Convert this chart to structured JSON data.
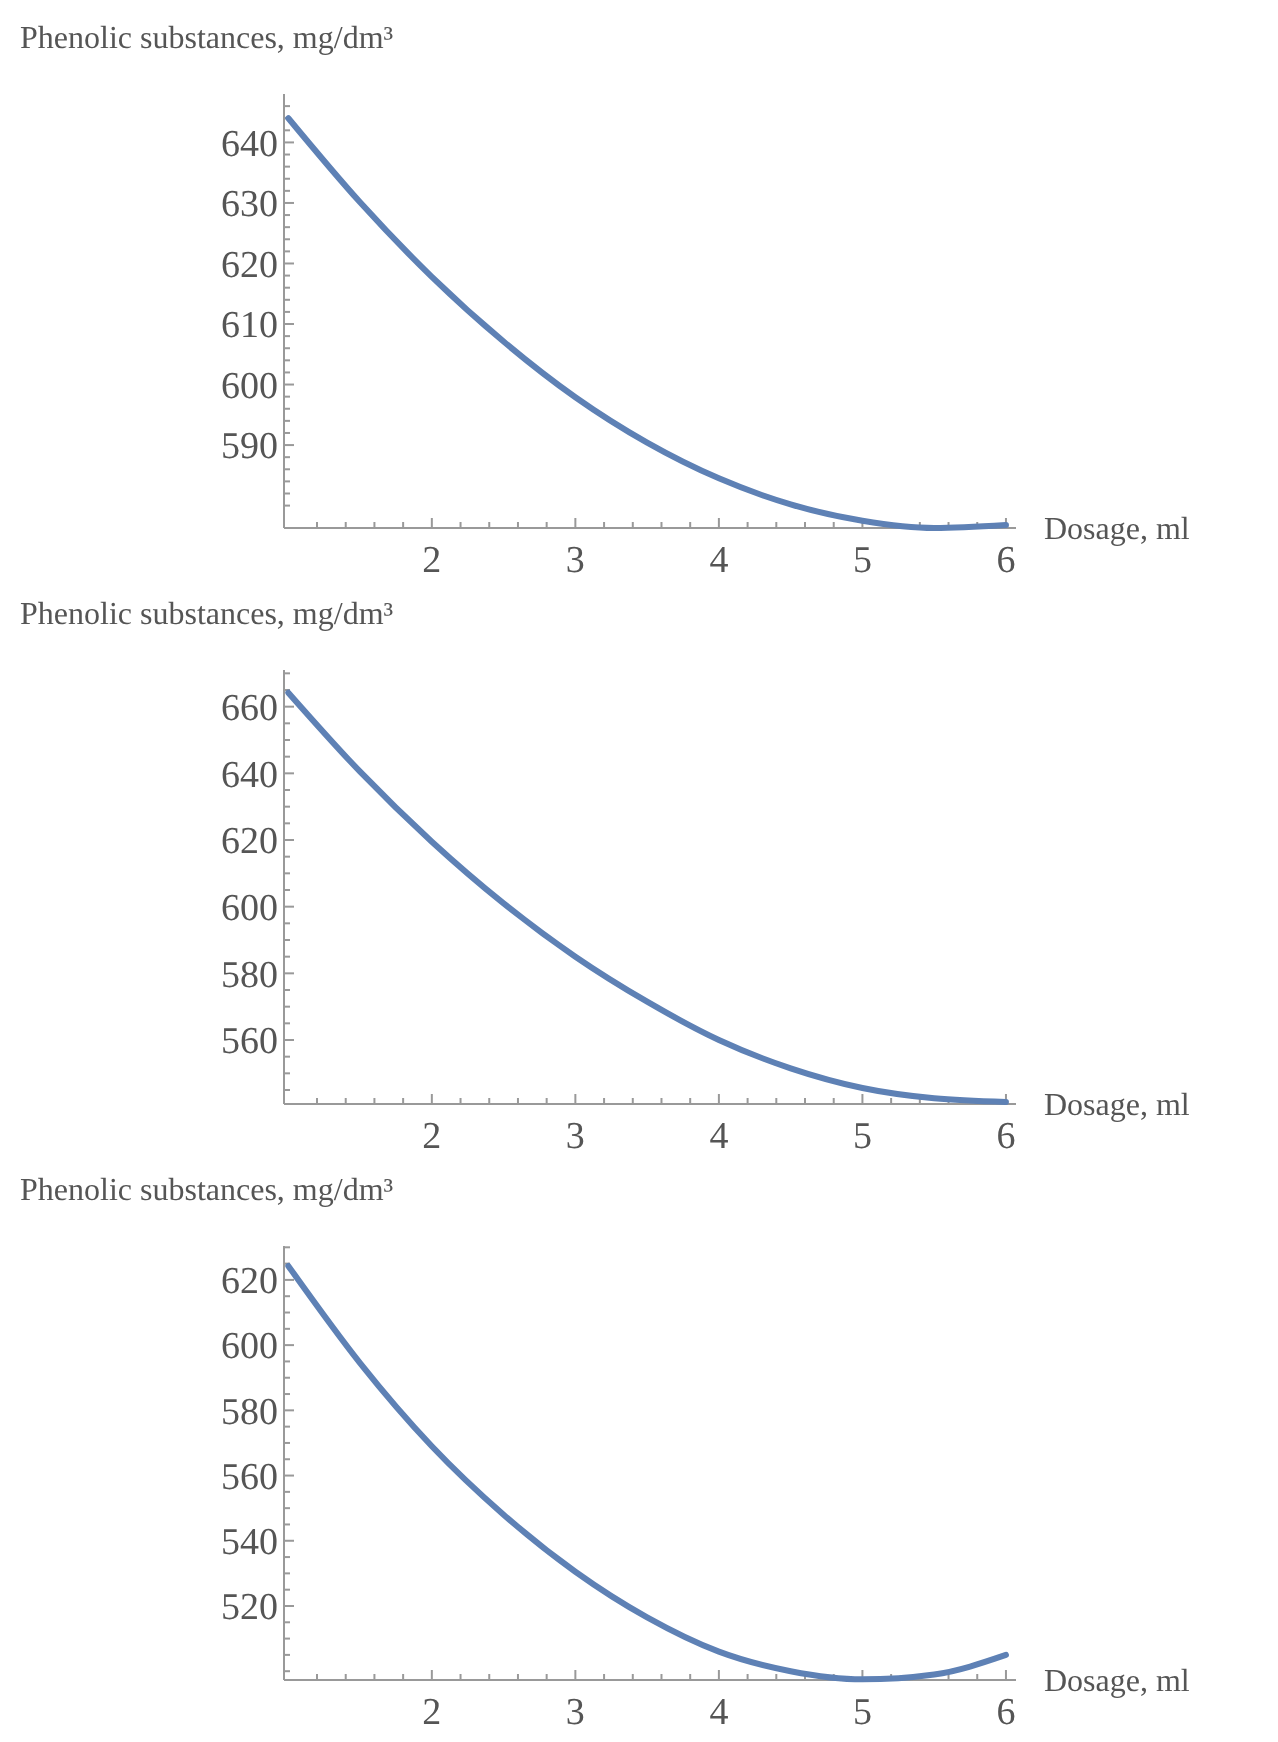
{
  "chart_data": [
    {
      "type": "line",
      "ylabel": "Phenolic substances, mg/dm³",
      "xlabel": "Dosage, ml",
      "grid": false,
      "marker": "none",
      "line_style": "solid",
      "x": [
        1,
        1.5,
        2,
        2.5,
        3,
        3.5,
        4,
        4.5,
        5,
        5.5,
        6
      ],
      "series": [
        {
          "color": "#5e81b5",
          "values": [
            644.0,
            630.1,
            617.8,
            607.1,
            597.9,
            590.4,
            584.5,
            580.2,
            577.5,
            576.3,
            576.8
          ]
        }
      ],
      "xlim": [
        0.97,
        6.07
      ],
      "ylim": [
        576.3,
        648
      ],
      "xticks": [
        {
          "value": 1.2,
          "label": null
        },
        {
          "value": 1.4,
          "label": null
        },
        {
          "value": 1.6,
          "label": null
        },
        {
          "value": 1.8,
          "label": null
        },
        2,
        {
          "value": 2.2,
          "label": null
        },
        {
          "value": 2.4,
          "label": null
        },
        {
          "value": 2.6,
          "label": null
        },
        {
          "value": 2.8,
          "label": null
        },
        3,
        {
          "value": 3.2,
          "label": null
        },
        {
          "value": 3.4,
          "label": null
        },
        {
          "value": 3.6,
          "label": null
        },
        {
          "value": 3.8,
          "label": null
        },
        4,
        {
          "value": 4.2,
          "label": null
        },
        {
          "value": 4.4,
          "label": null
        },
        {
          "value": 4.6,
          "label": null
        },
        {
          "value": 4.8,
          "label": null
        },
        5,
        {
          "value": 5.2,
          "label": null
        },
        {
          "value": 5.4,
          "label": null
        },
        {
          "value": 5.6,
          "label": null
        },
        {
          "value": 5.8,
          "label": null
        },
        6
      ],
      "yticks": [
        {
          "value": 580,
          "label": null
        },
        {
          "value": 582,
          "label": null
        },
        {
          "value": 584,
          "label": null
        },
        {
          "value": 586,
          "label": null
        },
        {
          "value": 588,
          "label": null
        },
        590,
        {
          "value": 592,
          "label": null
        },
        {
          "value": 594,
          "label": null
        },
        {
          "value": 596,
          "label": null
        },
        {
          "value": 598,
          "label": null
        },
        600,
        {
          "value": 602,
          "label": null
        },
        {
          "value": 604,
          "label": null
        },
        {
          "value": 606,
          "label": null
        },
        {
          "value": 608,
          "label": null
        },
        610,
        {
          "value": 612,
          "label": null
        },
        {
          "value": 614,
          "label": null
        },
        {
          "value": 616,
          "label": null
        },
        {
          "value": 618,
          "label": null
        },
        620,
        {
          "value": 622,
          "label": null
        },
        {
          "value": 624,
          "label": null
        },
        {
          "value": 626,
          "label": null
        },
        {
          "value": 628,
          "label": null
        },
        630,
        {
          "value": 632,
          "label": null
        },
        {
          "value": 634,
          "label": null
        },
        {
          "value": 636,
          "label": null
        },
        {
          "value": 638,
          "label": null
        },
        640,
        {
          "value": 642,
          "label": null
        },
        {
          "value": 644,
          "label": null
        },
        {
          "value": 646,
          "label": null
        }
      ]
    },
    {
      "type": "line",
      "ylabel": "Phenolic substances, mg/dm³",
      "xlabel": "Dosage, ml",
      "grid": false,
      "marker": "none",
      "line_style": "solid",
      "x": [
        1,
        1.5,
        2,
        2.5,
        3,
        3.5,
        4,
        4.5,
        5,
        5.5,
        6
      ],
      "series": [
        {
          "color": "#5e81b5",
          "values": [
            664.2,
            640.5,
            619.5,
            601.0,
            585.0,
            571.5,
            560.0,
            551.5,
            545.6,
            542.5,
            541.4
          ]
        }
      ],
      "xlim": [
        0.97,
        6.07
      ],
      "ylim": [
        540.8,
        671
      ],
      "xticks": [
        {
          "value": 1.2,
          "label": null
        },
        {
          "value": 1.4,
          "label": null
        },
        {
          "value": 1.6,
          "label": null
        },
        {
          "value": 1.8,
          "label": null
        },
        2,
        {
          "value": 2.2,
          "label": null
        },
        {
          "value": 2.4,
          "label": null
        },
        {
          "value": 2.6,
          "label": null
        },
        {
          "value": 2.8,
          "label": null
        },
        3,
        {
          "value": 3.2,
          "label": null
        },
        {
          "value": 3.4,
          "label": null
        },
        {
          "value": 3.6,
          "label": null
        },
        {
          "value": 3.8,
          "label": null
        },
        4,
        {
          "value": 4.2,
          "label": null
        },
        {
          "value": 4.4,
          "label": null
        },
        {
          "value": 4.6,
          "label": null
        },
        {
          "value": 4.8,
          "label": null
        },
        5,
        {
          "value": 5.2,
          "label": null
        },
        {
          "value": 5.4,
          "label": null
        },
        {
          "value": 5.6,
          "label": null
        },
        {
          "value": 5.8,
          "label": null
        },
        6
      ],
      "yticks": [
        {
          "value": 545,
          "label": null
        },
        {
          "value": 550,
          "label": null
        },
        {
          "value": 555,
          "label": null
        },
        560,
        {
          "value": 565,
          "label": null
        },
        {
          "value": 570,
          "label": null
        },
        {
          "value": 575,
          "label": null
        },
        580,
        {
          "value": 585,
          "label": null
        },
        {
          "value": 590,
          "label": null
        },
        {
          "value": 595,
          "label": null
        },
        600,
        {
          "value": 605,
          "label": null
        },
        {
          "value": 610,
          "label": null
        },
        {
          "value": 615,
          "label": null
        },
        620,
        {
          "value": 625,
          "label": null
        },
        {
          "value": 630,
          "label": null
        },
        {
          "value": 635,
          "label": null
        },
        640,
        {
          "value": 645,
          "label": null
        },
        {
          "value": 650,
          "label": null
        },
        {
          "value": 655,
          "label": null
        },
        660,
        {
          "value": 665,
          "label": null
        },
        {
          "value": 670,
          "label": null
        }
      ]
    },
    {
      "type": "line",
      "ylabel": "Phenolic substances, mg/dm³",
      "xlabel": "Dosage, ml",
      "grid": false,
      "marker": "none",
      "line_style": "solid",
      "x": [
        1,
        1.5,
        2,
        2.5,
        3,
        3.5,
        4,
        4.5,
        5,
        5.5,
        6
      ],
      "series": [
        {
          "color": "#5e81b5",
          "values": [
            624.3,
            594.5,
            569.0,
            548.0,
            530.5,
            516.5,
            506.0,
            500.0,
            497.5,
            499.0,
            505.0
          ]
        }
      ],
      "xlim": [
        0.97,
        6.07
      ],
      "ylim": [
        497.3,
        630.4
      ],
      "xticks": [
        {
          "value": 1.2,
          "label": null
        },
        {
          "value": 1.4,
          "label": null
        },
        {
          "value": 1.6,
          "label": null
        },
        {
          "value": 1.8,
          "label": null
        },
        2,
        {
          "value": 2.2,
          "label": null
        },
        {
          "value": 2.4,
          "label": null
        },
        {
          "value": 2.6,
          "label": null
        },
        {
          "value": 2.8,
          "label": null
        },
        3,
        {
          "value": 3.2,
          "label": null
        },
        {
          "value": 3.4,
          "label": null
        },
        {
          "value": 3.6,
          "label": null
        },
        {
          "value": 3.8,
          "label": null
        },
        4,
        {
          "value": 4.2,
          "label": null
        },
        {
          "value": 4.4,
          "label": null
        },
        {
          "value": 4.6,
          "label": null
        },
        {
          "value": 4.8,
          "label": null
        },
        5,
        {
          "value": 5.2,
          "label": null
        },
        {
          "value": 5.4,
          "label": null
        },
        {
          "value": 5.6,
          "label": null
        },
        {
          "value": 5.8,
          "label": null
        },
        6
      ],
      "yticks": [
        {
          "value": 500,
          "label": null
        },
        {
          "value": 505,
          "label": null
        },
        {
          "value": 510,
          "label": null
        },
        {
          "value": 515,
          "label": null
        },
        520,
        {
          "value": 525,
          "label": null
        },
        {
          "value": 530,
          "label": null
        },
        {
          "value": 535,
          "label": null
        },
        540,
        {
          "value": 545,
          "label": null
        },
        {
          "value": 550,
          "label": null
        },
        {
          "value": 555,
          "label": null
        },
        560,
        {
          "value": 565,
          "label": null
        },
        {
          "value": 570,
          "label": null
        },
        {
          "value": 575,
          "label": null
        },
        580,
        {
          "value": 585,
          "label": null
        },
        {
          "value": 590,
          "label": null
        },
        {
          "value": 595,
          "label": null
        },
        600,
        {
          "value": 605,
          "label": null
        },
        {
          "value": 610,
          "label": null
        },
        {
          "value": 615,
          "label": null
        },
        620,
        {
          "value": 625,
          "label": null
        },
        {
          "value": 630,
          "label": null
        }
      ]
    }
  ]
}
